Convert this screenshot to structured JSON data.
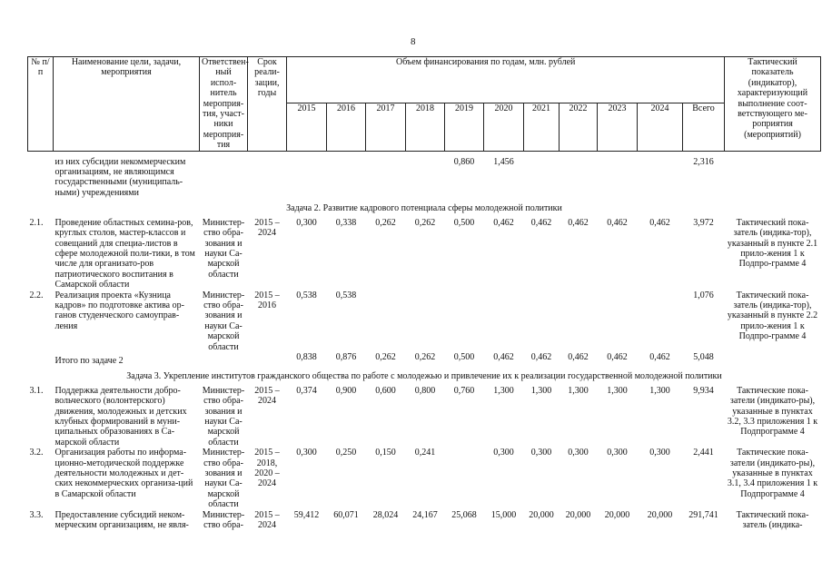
{
  "page_number": "8",
  "header": {
    "num": "№ п/п",
    "name": "Наименование цели, задачи, мероприятия",
    "responsible": "Ответствен-ный испол-нитель мероприя-тия, участ-ники мероприя-тия",
    "term": "Срок реали-зации, годы",
    "funding": "Объем финансирования по годам, млн. рублей",
    "years": [
      "2015",
      "2016",
      "2017",
      "2018",
      "2019",
      "2020",
      "2021",
      "2022",
      "2023",
      "2024",
      "Всего"
    ],
    "indicator": "Тактический показатель (индикатор), характеризующий выполнение соот-ветствующего ме-роприятия (мероприятий)"
  },
  "rows": [
    {
      "type": "item",
      "num": "",
      "name": "из них субсидии некоммерческим организациям, не являющимся государственными (муниципаль-ными) учреждениями",
      "responsible": "",
      "term": "",
      "values": [
        "",
        "",
        "",
        "",
        "0,860",
        "1,456",
        "",
        "",
        "",
        "",
        "2,316"
      ],
      "indicator": ""
    },
    {
      "type": "task",
      "title": "Задача 2. Развитие кадрового потенциала сферы молодежной политики"
    },
    {
      "type": "item",
      "num": "2.1.",
      "name": "Проведение областных семина-ров, круглых столов, мастер-классов и совещаний для специа-листов в сфере молодежной поли-тики, в том числе для организато-ров патриотического воспитания в Самарской области",
      "responsible": "Министер-ство обра-зования и науки Са-марской области",
      "term": "2015 – 2024",
      "values": [
        "0,300",
        "0,338",
        "0,262",
        "0,262",
        "0,500",
        "0,462",
        "0,462",
        "0,462",
        "0,462",
        "0,462",
        "3,972"
      ],
      "indicator": "Тактический пока-затель (индика-тор), указанный в пункте 2.1 прило-жения 1 к Подпро-грамме 4"
    },
    {
      "type": "item",
      "num": "2.2.",
      "name": "Реализация проекта «Кузница кадров» по подготовке актива ор-ганов студенческого самоуправ-ления",
      "responsible": "Министер-ство обра-зования и науки Са-марской области",
      "term": "2015 – 2016",
      "values": [
        "0,538",
        "0,538",
        "",
        "",
        "",
        "",
        "",
        "",
        "",
        "",
        "1,076"
      ],
      "indicator": "Тактический пока-затель (индика-тор), указанный в пункте 2.2 прило-жения 1 к Подпро-грамме 4"
    },
    {
      "type": "item",
      "num": "",
      "name": "Итого по задаче 2",
      "responsible": "",
      "term": "",
      "values": [
        "0,838",
        "0,876",
        "0,262",
        "0,262",
        "0,500",
        "0,462",
        "0,462",
        "0,462",
        "0,462",
        "0,462",
        "5,048"
      ],
      "indicator": "",
      "indent": true
    },
    {
      "type": "task",
      "title": "Задача 3. Укрепление институтов гражданского общества по работе с молодежью и привлечение их к реализации государственной молодежной политики"
    },
    {
      "type": "item",
      "num": "3.1.",
      "name": "Поддержка деятельности добро-вольческого (волонтерского) движения, молодежных и детских клубных формирований в муни-ципальных образованиях в Са-марской области",
      "responsible": "Министер-ство обра-зования и науки Са-марской области",
      "term": "2015 – 2024",
      "values": [
        "0,374",
        "0,900",
        "0,600",
        "0,800",
        "0,760",
        "1,300",
        "1,300",
        "1,300",
        "1,300",
        "1,300",
        "9,934"
      ],
      "indicator": "Тактические пока-затели (индикато-ры), указанные в пунктах 3.2, 3.3 приложения 1 к Подпрограмме 4"
    },
    {
      "type": "item",
      "num": "3.2.",
      "name": "Организация работы по информа-ционно-методической поддержке деятельности молодежных и дет-ских некоммерческих организа-ций в Самарской области",
      "responsible": "Министер-ство обра-зования и науки Са-марской области",
      "term": "2015 – 2018, 2020 – 2024",
      "values": [
        "0,300",
        "0,250",
        "0,150",
        "0,241",
        "",
        "0,300",
        "0,300",
        "0,300",
        "0,300",
        "0,300",
        "2,441"
      ],
      "indicator": "Тактические пока-затели (индикато-ры), указанные в пунктах 3.1, 3.4 приложения 1 к Подпрограмме 4"
    },
    {
      "type": "item",
      "num": "3.3.",
      "name": "Предоставление субсидий неком-мерческим организациям, не явля-",
      "responsible": "Министер-ство обра-",
      "term": "2015 – 2024",
      "values": [
        "59,412",
        "60,071",
        "28,024",
        "24,167",
        "25,068",
        "15,000",
        "20,000",
        "20,000",
        "20,000",
        "20,000",
        "291,741"
      ],
      "indicator": "Тактический пока-затель (индика-"
    }
  ]
}
